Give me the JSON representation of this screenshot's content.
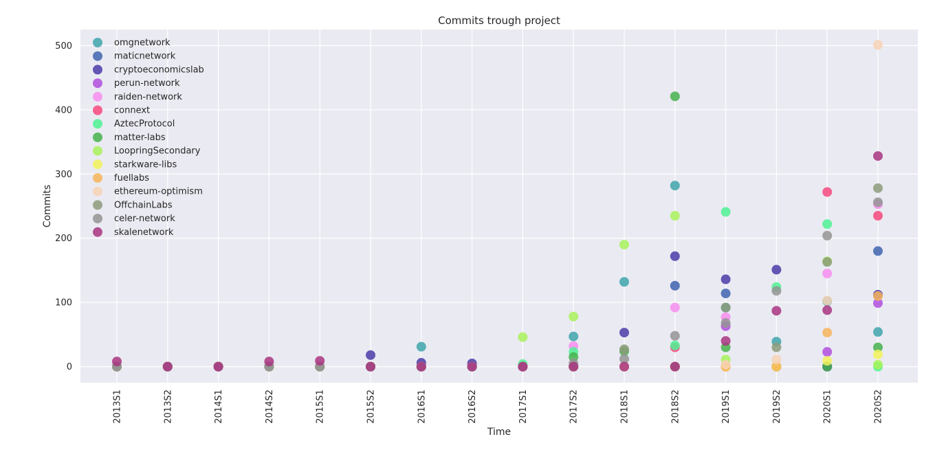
{
  "chart_data": {
    "type": "scatter",
    "title": "Commits trough project",
    "xlabel": "Time",
    "ylabel": "Commits",
    "categories": [
      "2013S1",
      "2013S2",
      "2014S1",
      "2014S2",
      "2015S1",
      "2015S2",
      "2016S1",
      "2016S2",
      "2017S1",
      "2017S2",
      "2018S1",
      "2018S2",
      "2019S1",
      "2019S2",
      "2020S1",
      "2020S2"
    ],
    "yticks": [
      0,
      100,
      200,
      300,
      400,
      500
    ],
    "ylim": [
      -25,
      525
    ],
    "grid": true,
    "legend_position": "top-left",
    "background": "#eaeaf2",
    "series": [
      {
        "name": "omgnetwork",
        "color": "#3fa5ab",
        "values": [
          0,
          0,
          0,
          0,
          0,
          0,
          31,
          0,
          0,
          47,
          132,
          282,
          92,
          39,
          102,
          54
        ]
      },
      {
        "name": "maticnetwork",
        "color": "#3e64b0",
        "values": [
          0,
          0,
          0,
          0,
          0,
          0,
          0,
          0,
          0,
          0,
          0,
          126,
          114,
          0,
          0,
          180
        ]
      },
      {
        "name": "cryptoeconomicslab",
        "color": "#4b3ba8",
        "values": [
          0,
          0,
          0,
          0,
          0,
          18,
          6,
          5,
          0,
          0,
          53,
          172,
          136,
          151,
          0,
          112
        ]
      },
      {
        "name": "perun-network",
        "color": "#b24fde",
        "values": [
          0,
          0,
          0,
          0,
          0,
          0,
          0,
          0,
          0,
          0,
          0,
          0,
          63,
          0,
          23,
          99
        ]
      },
      {
        "name": "raiden-network",
        "color": "#f78ef0",
        "values": [
          0,
          0,
          0,
          0,
          0,
          0,
          0,
          0,
          0,
          32,
          0,
          92,
          77,
          0,
          145,
          253
        ]
      },
      {
        "name": "connext",
        "color": "#f7487e",
        "values": [
          0,
          0,
          0,
          0,
          0,
          0,
          0,
          0,
          0,
          0,
          0,
          30,
          0,
          0,
          272,
          235
        ]
      },
      {
        "name": "AztecProtocol",
        "color": "#4ff294",
        "values": [
          0,
          0,
          0,
          0,
          0,
          0,
          0,
          0,
          4,
          23,
          0,
          33,
          241,
          124,
          222,
          0
        ]
      },
      {
        "name": "matter-labs",
        "color": "#47b24d",
        "values": [
          0,
          0,
          0,
          0,
          0,
          0,
          0,
          0,
          0,
          15,
          24,
          421,
          30,
          0,
          0,
          30
        ]
      },
      {
        "name": "LoopringSecondary",
        "color": "#a8f25a",
        "values": [
          0,
          0,
          0,
          0,
          0,
          0,
          0,
          0,
          46,
          78,
          190,
          235,
          11,
          0,
          164,
          3
        ]
      },
      {
        "name": "starkware-libs",
        "color": "#f2f25a",
        "values": [
          0,
          0,
          0,
          0,
          0,
          0,
          0,
          0,
          0,
          0,
          0,
          0,
          0,
          0,
          9,
          19
        ]
      },
      {
        "name": "fuellabs",
        "color": "#f7b55a",
        "values": [
          0,
          0,
          0,
          0,
          0,
          0,
          0,
          0,
          0,
          0,
          0,
          0,
          0,
          0,
          53,
          110
        ]
      },
      {
        "name": "ethereum-optimism",
        "color": "#f7d2b5",
        "values": [
          0,
          0,
          0,
          0,
          0,
          0,
          0,
          0,
          0,
          0,
          0,
          0,
          3,
          11,
          103,
          501
        ]
      },
      {
        "name": "OffchainLabs",
        "color": "#8c9b7a",
        "values": [
          0,
          0,
          0,
          0,
          0,
          0,
          0,
          0,
          0,
          0,
          27,
          0,
          92,
          30,
          163,
          278
        ]
      },
      {
        "name": "celer-network",
        "color": "#949494",
        "values": [
          0,
          0,
          0,
          0,
          0,
          0,
          0,
          0,
          0,
          5,
          12,
          48,
          68,
          118,
          204,
          256
        ]
      },
      {
        "name": "skalenetwork",
        "color": "#a83580",
        "values": [
          8,
          0,
          0,
          8,
          9,
          0,
          0,
          0,
          0,
          0,
          0,
          0,
          40,
          87,
          88,
          328
        ]
      }
    ]
  }
}
